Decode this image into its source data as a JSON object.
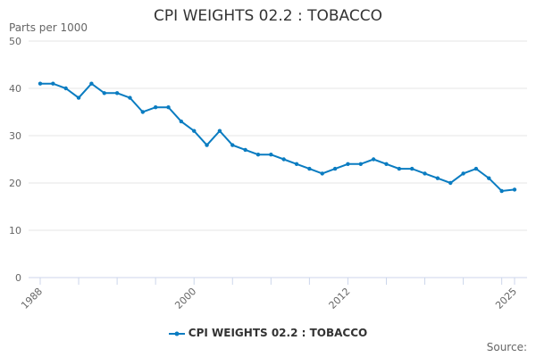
{
  "chart_data": {
    "type": "line",
    "title": "CPI WEIGHTS 02.2 : TOBACCO",
    "ylabel": "Parts per 1000",
    "xlabel": "",
    "source_label": "Source:",
    "ylim": [
      0,
      50
    ],
    "yticks": [
      0,
      10,
      20,
      30,
      40,
      50
    ],
    "xticklabels": [
      "1988",
      "2000",
      "2012",
      "2025"
    ],
    "grid": true,
    "legend_position": "bottom",
    "color": "#0a7cc1",
    "series": [
      {
        "name": "CPI WEIGHTS 02.2 : TOBACCO",
        "x": [
          1988,
          1989,
          1990,
          1991,
          1992,
          1993,
          1994,
          1995,
          1996,
          1997,
          1998,
          1999,
          2000,
          2001,
          2002,
          2003,
          2004,
          2005,
          2006,
          2007,
          2008,
          2009,
          2010,
          2011,
          2012,
          2013,
          2014,
          2015,
          2016,
          2017,
          2018,
          2019,
          2020,
          2021,
          2022,
          2023,
          2024,
          2025
        ],
        "values": [
          41,
          41,
          40,
          38,
          41,
          39,
          39,
          38,
          35,
          36,
          36,
          33,
          31,
          28,
          31,
          28,
          27,
          26,
          26,
          25,
          24,
          23,
          22,
          23,
          24,
          24,
          25,
          24,
          23,
          23,
          22,
          21,
          20,
          22,
          23,
          21,
          18.3,
          18.6
        ]
      }
    ]
  }
}
